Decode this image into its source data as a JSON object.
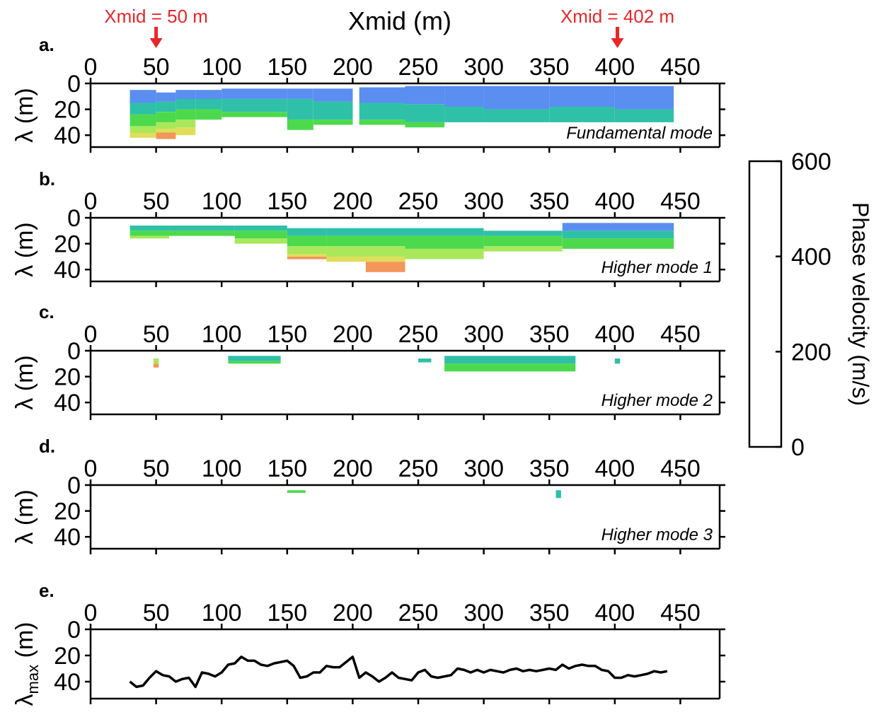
{
  "chart_data": {
    "type": "heatmap",
    "title": "Xmid (m)",
    "xlim": [
      0,
      480
    ],
    "ylim": [
      50,
      0
    ],
    "xticks": [
      "0",
      "50",
      "100",
      "150",
      "200",
      "250",
      "300",
      "350",
      "400",
      "450"
    ],
    "yticks": [
      "0",
      "20",
      "40"
    ],
    "panels": [
      {
        "label": "a.",
        "ylabel": "λ (m)",
        "mode": "Fundamental mode"
      },
      {
        "label": "b.",
        "ylabel": "λ (m)",
        "mode": "Higher mode 1"
      },
      {
        "label": "c.",
        "ylabel": "λ (m)",
        "mode": "Higher mode 2"
      },
      {
        "label": "d.",
        "ylabel": "λ (m)",
        "mode": "Higher mode 3"
      },
      {
        "label": "e.",
        "ylabel": "λmax (m)",
        "mode": ""
      }
    ],
    "annotations": [
      {
        "text": "Xmid = 50 m",
        "x": 50
      },
      {
        "text": "Xmid = 402 m",
        "x": 402
      }
    ],
    "colorbar": {
      "title": "Phase velocity (m/s)",
      "range": [
        0,
        600
      ],
      "ticks": [
        "600",
        "400",
        "200",
        "0"
      ],
      "colors": [
        "#7a0a8c",
        "#7b3fe4",
        "#5a8ef0",
        "#2fc0a8",
        "#4cd94c",
        "#a8e85a",
        "#dede5a",
        "#f2965a"
      ]
    },
    "fundamental": [
      {
        "x0": 30,
        "x1": 50,
        "bands": [
          [
            5,
            15,
            0.7
          ],
          [
            15,
            24,
            1
          ],
          [
            24,
            33,
            2
          ],
          [
            33,
            38,
            3
          ],
          [
            38,
            42,
            4
          ]
        ]
      },
      {
        "x0": 50,
        "x1": 65,
        "bands": [
          [
            7,
            14,
            0.7
          ],
          [
            14,
            22,
            1
          ],
          [
            22,
            30,
            2
          ],
          [
            30,
            35,
            3
          ],
          [
            35,
            38,
            4
          ],
          [
            38,
            43,
            5
          ]
        ]
      },
      {
        "x0": 65,
        "x1": 80,
        "bands": [
          [
            5,
            12,
            0.7
          ],
          [
            12,
            20,
            1
          ],
          [
            20,
            28,
            2
          ],
          [
            28,
            34,
            3
          ],
          [
            34,
            40,
            4
          ]
        ]
      },
      {
        "x0": 80,
        "x1": 100,
        "bands": [
          [
            5,
            12,
            0.7
          ],
          [
            12,
            20,
            1
          ],
          [
            20,
            28,
            2
          ]
        ]
      },
      {
        "x0": 100,
        "x1": 150,
        "bands": [
          [
            4,
            12,
            0.7
          ],
          [
            12,
            22,
            1
          ],
          [
            22,
            26,
            2
          ]
        ]
      },
      {
        "x0": 150,
        "x1": 170,
        "bands": [
          [
            4,
            12,
            0.7
          ],
          [
            12,
            28,
            1
          ],
          [
            28,
            36,
            2
          ]
        ]
      },
      {
        "x0": 170,
        "x1": 200,
        "bands": [
          [
            4,
            14,
            0.7
          ],
          [
            14,
            28,
            1
          ],
          [
            28,
            32,
            2
          ]
        ]
      },
      {
        "x0": 205,
        "x1": 240,
        "bands": [
          [
            3,
            15,
            0.7
          ],
          [
            15,
            28,
            1
          ],
          [
            28,
            32,
            2
          ]
        ]
      },
      {
        "x0": 240,
        "x1": 270,
        "bands": [
          [
            2,
            16,
            0.7
          ],
          [
            16,
            30,
            1
          ],
          [
            30,
            34,
            2
          ]
        ]
      },
      {
        "x0": 270,
        "x1": 300,
        "bands": [
          [
            2,
            18,
            0.7
          ],
          [
            18,
            30,
            1
          ]
        ]
      },
      {
        "x0": 300,
        "x1": 350,
        "bands": [
          [
            2,
            20,
            0.7
          ],
          [
            20,
            30,
            1
          ]
        ]
      },
      {
        "x0": 350,
        "x1": 400,
        "bands": [
          [
            2,
            18,
            0.7
          ],
          [
            18,
            30,
            1
          ]
        ]
      },
      {
        "x0": 400,
        "x1": 445,
        "bands": [
          [
            2,
            20,
            0.7
          ],
          [
            20,
            30,
            1
          ]
        ]
      }
    ],
    "higher1": [
      {
        "x0": 30,
        "x1": 60,
        "bands": [
          [
            6,
            10,
            1
          ],
          [
            10,
            14,
            2
          ],
          [
            14,
            16,
            3
          ]
        ]
      },
      {
        "x0": 60,
        "x1": 110,
        "bands": [
          [
            6,
            10,
            1
          ],
          [
            10,
            14,
            2
          ]
        ]
      },
      {
        "x0": 110,
        "x1": 150,
        "bands": [
          [
            6,
            10,
            1
          ],
          [
            10,
            16,
            2
          ],
          [
            16,
            20,
            3
          ]
        ]
      },
      {
        "x0": 150,
        "x1": 180,
        "bands": [
          [
            8,
            14,
            1
          ],
          [
            14,
            22,
            2
          ],
          [
            22,
            28,
            3
          ],
          [
            28,
            30,
            4
          ],
          [
            30,
            32,
            5
          ]
        ]
      },
      {
        "x0": 180,
        "x1": 210,
        "bands": [
          [
            8,
            14,
            1
          ],
          [
            14,
            22,
            2
          ],
          [
            22,
            30,
            3
          ],
          [
            30,
            34,
            4
          ]
        ]
      },
      {
        "x0": 210,
        "x1": 240,
        "bands": [
          [
            8,
            14,
            1
          ],
          [
            14,
            22,
            2
          ],
          [
            22,
            30,
            3
          ],
          [
            30,
            34,
            4
          ],
          [
            34,
            42,
            5
          ]
        ]
      },
      {
        "x0": 240,
        "x1": 300,
        "bands": [
          [
            8,
            14,
            1
          ],
          [
            14,
            24,
            2
          ],
          [
            24,
            32,
            3
          ]
        ]
      },
      {
        "x0": 300,
        "x1": 360,
        "bands": [
          [
            10,
            14,
            1
          ],
          [
            14,
            22,
            2
          ],
          [
            22,
            26,
            3
          ]
        ]
      },
      {
        "x0": 360,
        "x1": 445,
        "bands": [
          [
            4,
            10,
            0.7
          ],
          [
            10,
            16,
            1
          ],
          [
            16,
            24,
            2
          ]
        ]
      }
    ],
    "higher2": [
      {
        "x0": 48,
        "x1": 52,
        "bands": [
          [
            6,
            10,
            3
          ],
          [
            10,
            13,
            5
          ]
        ]
      },
      {
        "x0": 105,
        "x1": 145,
        "bands": [
          [
            4,
            8,
            1
          ],
          [
            8,
            10,
            2
          ]
        ]
      },
      {
        "x0": 250,
        "x1": 260,
        "bands": [
          [
            6,
            9,
            1
          ]
        ]
      },
      {
        "x0": 270,
        "x1": 370,
        "bands": [
          [
            4,
            10,
            1
          ],
          [
            10,
            16,
            2
          ]
        ]
      },
      {
        "x0": 400,
        "x1": 404,
        "bands": [
          [
            6,
            10,
            1
          ]
        ]
      }
    ],
    "higher3": [
      {
        "x0": 150,
        "x1": 164,
        "bands": [
          [
            4,
            6,
            2
          ]
        ]
      },
      {
        "x0": 355,
        "x1": 359,
        "bands": [
          [
            4,
            10,
            1
          ]
        ]
      }
    ],
    "lambda_max": {
      "x": [
        30,
        35,
        40,
        45,
        50,
        55,
        60,
        65,
        70,
        75,
        80,
        85,
        90,
        95,
        100,
        105,
        110,
        115,
        120,
        125,
        130,
        135,
        140,
        145,
        150,
        155,
        160,
        165,
        170,
        175,
        180,
        185,
        190,
        195,
        200,
        205,
        210,
        215,
        220,
        225,
        230,
        235,
        240,
        245,
        250,
        255,
        260,
        265,
        270,
        275,
        280,
        285,
        290,
        295,
        300,
        305,
        310,
        315,
        320,
        325,
        330,
        335,
        340,
        345,
        350,
        355,
        360,
        365,
        370,
        375,
        380,
        385,
        390,
        395,
        400,
        405,
        410,
        415,
        420,
        425,
        430,
        435,
        440
      ],
      "y": [
        40,
        44,
        43,
        37,
        32,
        35,
        36,
        40,
        38,
        37,
        44,
        33,
        34,
        36,
        33,
        27,
        26,
        21,
        24,
        24,
        27,
        28,
        26,
        25,
        24,
        28,
        37,
        36,
        33,
        33,
        28,
        29,
        29,
        25,
        21,
        37,
        33,
        36,
        40,
        37,
        33,
        37,
        38,
        39,
        33,
        31,
        36,
        37,
        36,
        35,
        30,
        31,
        33,
        31,
        33,
        31,
        32,
        33,
        31,
        30,
        32,
        31,
        32,
        31,
        30,
        31,
        27,
        30,
        28,
        27,
        28,
        28,
        31,
        32,
        37,
        37,
        35,
        36,
        35,
        34,
        32,
        33,
        32
      ]
    }
  }
}
